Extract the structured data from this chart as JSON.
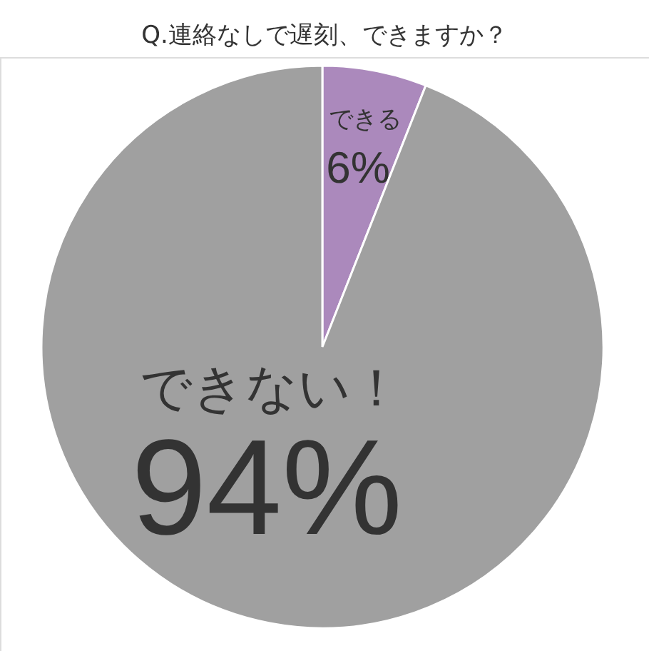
{
  "chart_data": {
    "type": "pie",
    "title": "Q.連絡なしで遅刻、できますか？",
    "categories": [
      "できる",
      "できない！"
    ],
    "values": [
      6,
      94
    ],
    "colors": [
      "#ab89bc",
      "#a0a0a0"
    ],
    "value_labels": [
      "6%",
      "94%"
    ]
  }
}
